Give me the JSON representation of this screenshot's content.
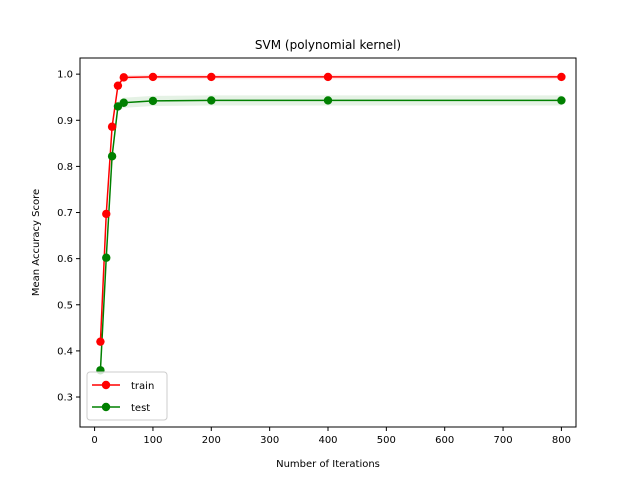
{
  "chart_data": {
    "type": "line",
    "title": "SVM (polynomial kernel)",
    "xlabel": "Number of Iterations",
    "ylabel": "Mean Accuracy Score",
    "xlim": [
      -25,
      825
    ],
    "ylim": [
      0.235,
      1.035
    ],
    "xticks": [
      0,
      100,
      200,
      300,
      400,
      500,
      600,
      700,
      800
    ],
    "yticks": [
      0.3,
      0.4,
      0.5,
      0.6,
      0.7,
      0.8,
      0.9,
      1.0
    ],
    "legend_placement": "lower-left",
    "grid": false,
    "x": [
      10,
      20,
      30,
      40,
      50,
      100,
      200,
      400,
      800
    ],
    "series": [
      {
        "name": "train",
        "color": "#ff0000",
        "values": [
          0.42,
          0.697,
          0.886,
          0.975,
          0.993,
          0.994,
          0.994,
          0.994,
          0.994
        ],
        "band": 0.005
      },
      {
        "name": "test",
        "color": "#008000",
        "values": [
          0.358,
          0.602,
          0.822,
          0.93,
          0.938,
          0.942,
          0.943,
          0.943,
          0.943
        ],
        "band": 0.011
      }
    ]
  }
}
